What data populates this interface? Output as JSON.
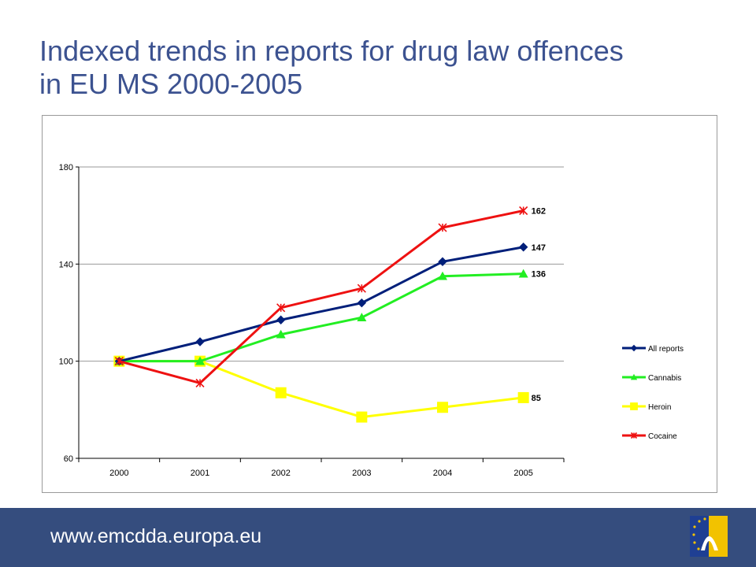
{
  "title": {
    "line1": "Indexed trends in reports for drug law offences",
    "line2": "in EU MS 2000-2005"
  },
  "footer": {
    "url": "www.emcdda.europa.eu"
  },
  "colors": {
    "title": "#3c5290",
    "footer_bg": "#354d7e",
    "all_reports": "#001f7a",
    "cannabis": "#22ee22",
    "heroin": "#ffff00",
    "cocaine": "#ee1111"
  },
  "chart_data": {
    "type": "line",
    "categories": [
      "2000",
      "2001",
      "2002",
      "2003",
      "2004",
      "2005"
    ],
    "ylim": [
      60,
      180
    ],
    "yticks": [
      "60",
      "100",
      "140",
      "180"
    ],
    "grid": true,
    "legend_position": "right",
    "series": [
      {
        "name": "All reports",
        "values": [
          100,
          108,
          117,
          124,
          141,
          147
        ],
        "color": "#001f7a",
        "marker": "diamond",
        "end_label": "147"
      },
      {
        "name": "Cannabis",
        "values": [
          100,
          100,
          111,
          118,
          135,
          136
        ],
        "color": "#22ee22",
        "marker": "triangle",
        "end_label": "136"
      },
      {
        "name": "Heroin",
        "values": [
          100,
          100,
          87,
          77,
          81,
          85
        ],
        "color": "#ffff00",
        "marker": "square",
        "end_label": "85"
      },
      {
        "name": "Cocaine",
        "values": [
          100,
          91,
          122,
          130,
          155,
          162
        ],
        "color": "#ee1111",
        "marker": "asterisk",
        "end_label": "162"
      }
    ]
  }
}
